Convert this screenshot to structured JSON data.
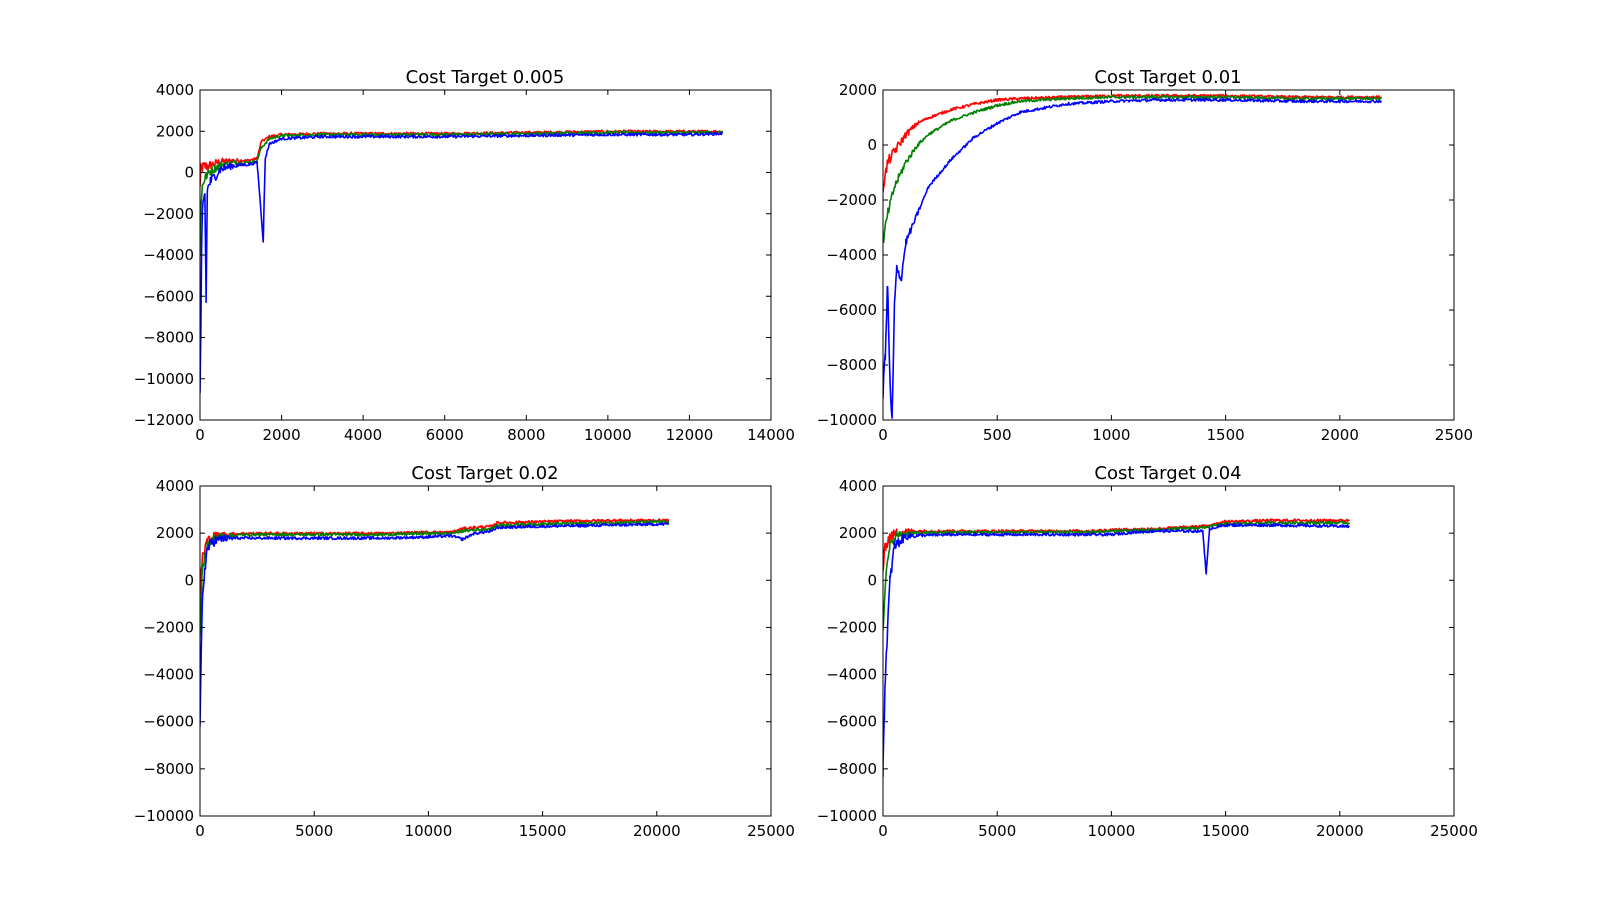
{
  "chart_data": [
    {
      "type": "line",
      "title": "Cost Target 0.005",
      "xlim": [
        0,
        14000
      ],
      "ylim": [
        -12000,
        4000
      ],
      "xticks": [
        0,
        2000,
        4000,
        6000,
        8000,
        10000,
        12000,
        14000
      ],
      "yticks": [
        -12000,
        -10000,
        -8000,
        -6000,
        -4000,
        -2000,
        0,
        2000,
        4000
      ],
      "grid": false,
      "series_colors": [
        "#ff0000",
        "#008000",
        "#0000ff"
      ],
      "series": [
        {
          "color": "#ff0000",
          "x": [
            0,
            20,
            60,
            120,
            250,
            500,
            800,
            1200,
            1400,
            1500,
            1700,
            2000,
            3000,
            4000,
            6000,
            8000,
            10000,
            12000,
            12800
          ],
          "y": [
            -500,
            200,
            300,
            350,
            400,
            550,
            600,
            600,
            700,
            1500,
            1750,
            1850,
            1900,
            1900,
            1900,
            1950,
            2000,
            2000,
            2000
          ]
        },
        {
          "color": "#008000",
          "x": [
            0,
            20,
            60,
            120,
            250,
            500,
            800,
            1200,
            1400,
            1500,
            1700,
            2000,
            3000,
            4000,
            6000,
            8000,
            10000,
            12000,
            12800
          ],
          "y": [
            -4000,
            -1500,
            -600,
            -200,
            100,
            400,
            500,
            500,
            600,
            1200,
            1650,
            1800,
            1850,
            1850,
            1850,
            1900,
            1950,
            1950,
            1950
          ]
        },
        {
          "color": "#0000ff",
          "x": [
            0,
            20,
            40,
            60,
            80,
            120,
            150,
            180,
            250,
            500,
            800,
            1200,
            1400,
            1480,
            1550,
            1600,
            1700,
            2000,
            3000,
            4000,
            6000,
            8000,
            10000,
            12000,
            12800
          ],
          "y": [
            -10300,
            -8000,
            -3500,
            -2000,
            -1500,
            -1000,
            -6200,
            -800,
            -400,
            200,
            350,
            400,
            500,
            -1500,
            -3300,
            700,
            1400,
            1650,
            1750,
            1750,
            1750,
            1800,
            1850,
            1850,
            1900
          ]
        }
      ]
    },
    {
      "type": "line",
      "title": "Cost Target 0.01",
      "xlim": [
        0,
        2500
      ],
      "ylim": [
        -10000,
        2000
      ],
      "xticks": [
        0,
        500,
        1000,
        1500,
        2000,
        2500
      ],
      "yticks": [
        -10000,
        -8000,
        -6000,
        -4000,
        -2000,
        0,
        2000
      ],
      "grid": false,
      "series_colors": [
        "#ff0000",
        "#008000",
        "#0000ff"
      ],
      "series": [
        {
          "color": "#ff0000",
          "x": [
            0,
            20,
            50,
            100,
            150,
            200,
            300,
            400,
            500,
            600,
            800,
            1000,
            1200,
            1500,
            1800,
            2000,
            2180
          ],
          "y": [
            -1500,
            -600,
            -200,
            400,
            800,
            1000,
            1300,
            1500,
            1650,
            1700,
            1750,
            1800,
            1800,
            1800,
            1750,
            1750,
            1750
          ]
        },
        {
          "color": "#008000",
          "x": [
            0,
            20,
            50,
            100,
            150,
            200,
            300,
            400,
            500,
            600,
            800,
            1000,
            1200,
            1500,
            1800,
            2000,
            2180
          ],
          "y": [
            -3500,
            -2500,
            -1500,
            -600,
            0,
            400,
            900,
            1200,
            1450,
            1600,
            1700,
            1750,
            1750,
            1750,
            1700,
            1700,
            1700
          ]
        },
        {
          "color": "#0000ff",
          "x": [
            0,
            10,
            20,
            30,
            40,
            50,
            60,
            80,
            100,
            150,
            200,
            300,
            400,
            500,
            600,
            800,
            1000,
            1200,
            1500,
            1800,
            2000,
            2180
          ],
          "y": [
            -9000,
            -7500,
            -5000,
            -8500,
            -10000,
            -5800,
            -4500,
            -4800,
            -3500,
            -2500,
            -1500,
            -500,
            300,
            800,
            1200,
            1500,
            1600,
            1650,
            1650,
            1600,
            1600,
            1600
          ]
        }
      ]
    },
    {
      "type": "line",
      "title": "Cost Target 0.02",
      "xlim": [
        0,
        25000
      ],
      "ylim": [
        -10000,
        4000
      ],
      "xticks": [
        0,
        5000,
        10000,
        15000,
        20000,
        25000
      ],
      "yticks": [
        -10000,
        -8000,
        -6000,
        -4000,
        -2000,
        0,
        2000,
        4000
      ],
      "grid": false,
      "series_colors": [
        "#ff0000",
        "#008000",
        "#0000ff"
      ],
      "series": [
        {
          "color": "#ff0000",
          "x": [
            0,
            100,
            300,
            600,
            1000,
            2000,
            5000,
            8000,
            10000,
            11000,
            11500,
            12000,
            12800,
            13000,
            15000,
            18000,
            20500
          ],
          "y": [
            -500,
            1000,
            1700,
            1900,
            1950,
            2000,
            2000,
            2000,
            2050,
            2050,
            2200,
            2250,
            2300,
            2450,
            2500,
            2550,
            2550
          ]
        },
        {
          "color": "#008000",
          "x": [
            0,
            100,
            300,
            600,
            1000,
            2000,
            5000,
            8000,
            10000,
            11000,
            11500,
            12000,
            12800,
            13000,
            15000,
            18000,
            20500
          ],
          "y": [
            -2500,
            500,
            1500,
            1800,
            1900,
            1950,
            1950,
            1950,
            2000,
            2000,
            2100,
            2150,
            2200,
            2350,
            2400,
            2450,
            2500
          ]
        },
        {
          "color": "#0000ff",
          "x": [
            0,
            50,
            100,
            200,
            300,
            400,
            600,
            1000,
            2000,
            5000,
            8000,
            10000,
            11000,
            11500,
            12000,
            12800,
            13000,
            15000,
            18000,
            20500
          ],
          "y": [
            -6000,
            -3500,
            -1000,
            500,
            1300,
            1500,
            1700,
            1800,
            1800,
            1800,
            1800,
            1850,
            1900,
            1750,
            2000,
            2100,
            2250,
            2300,
            2350,
            2400
          ]
        }
      ]
    },
    {
      "type": "line",
      "title": "Cost Target 0.04",
      "xlim": [
        0,
        25000
      ],
      "ylim": [
        -10000,
        4000
      ],
      "xticks": [
        0,
        5000,
        10000,
        15000,
        20000,
        25000
      ],
      "yticks": [
        -10000,
        -8000,
        -6000,
        -4000,
        -2000,
        0,
        2000,
        4000
      ],
      "grid": false,
      "series_colors": [
        "#ff0000",
        "#008000",
        "#0000ff"
      ],
      "series": [
        {
          "color": "#ff0000",
          "x": [
            0,
            100,
            300,
            600,
            1000,
            3000,
            6000,
            9000,
            10000,
            12000,
            14000,
            15000,
            17000,
            20400
          ],
          "y": [
            500,
            1500,
            1900,
            2050,
            2100,
            2100,
            2100,
            2100,
            2150,
            2200,
            2300,
            2500,
            2550,
            2550
          ]
        },
        {
          "color": "#008000",
          "x": [
            0,
            100,
            300,
            600,
            1000,
            3000,
            6000,
            9000,
            10000,
            12000,
            14000,
            15000,
            17000,
            20400
          ],
          "y": [
            -2000,
            0,
            1500,
            1950,
            2000,
            2050,
            2050,
            2050,
            2100,
            2150,
            2250,
            2400,
            2450,
            2450
          ]
        },
        {
          "color": "#0000ff",
          "x": [
            0,
            50,
            100,
            200,
            300,
            500,
            1000,
            3000,
            6000,
            9000,
            10000,
            11000,
            12000,
            14000,
            14150,
            14300,
            15000,
            17000,
            20400
          ],
          "y": [
            -8000,
            -6000,
            -4000,
            -2000,
            0,
            1500,
            1900,
            1950,
            1950,
            1950,
            1950,
            2050,
            2100,
            2100,
            300,
            2200,
            2350,
            2350,
            2300
          ]
        }
      ]
    }
  ]
}
